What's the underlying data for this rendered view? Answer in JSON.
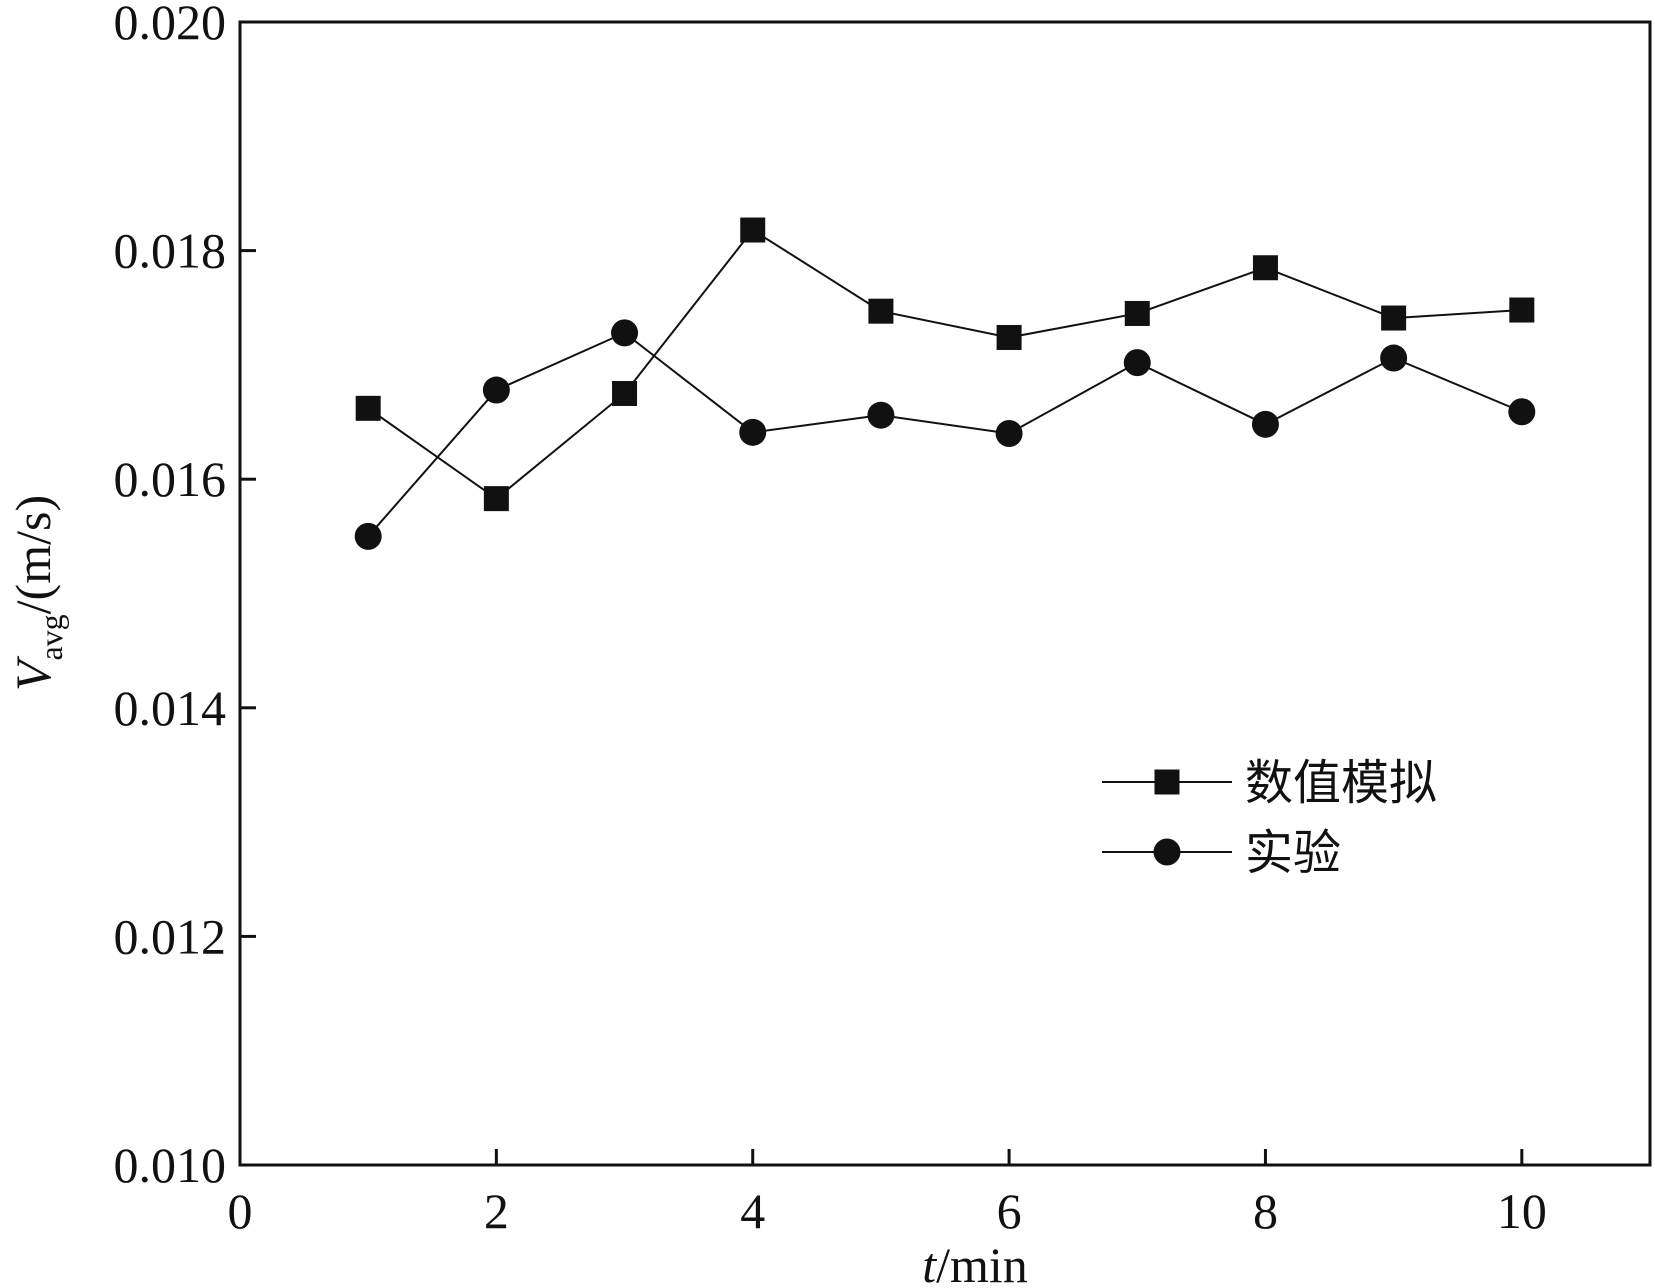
{
  "chart_data": {
    "type": "line",
    "x": [
      1,
      2,
      3,
      4,
      5,
      6,
      7,
      8,
      9,
      10
    ],
    "series": [
      {
        "name": "数值模拟",
        "marker": "square",
        "values": [
          0.01662,
          0.01583,
          0.01675,
          0.01818,
          0.01747,
          0.01724,
          0.01745,
          0.01785,
          0.01741,
          0.01748
        ]
      },
      {
        "name": "实验",
        "marker": "circle",
        "values": [
          0.0155,
          0.01678,
          0.01728,
          0.01641,
          0.01656,
          0.0164,
          0.01702,
          0.01648,
          0.01706,
          0.01659
        ]
      }
    ],
    "xlabel": {
      "italic": "t",
      "rest": "/min"
    },
    "ylabel": {
      "italic": "V",
      "sub": "avg",
      "rest": "/(m/s)"
    },
    "xlim": [
      0,
      11
    ],
    "ylim": [
      0.01,
      0.02
    ],
    "xticks": [
      0,
      2,
      4,
      6,
      8,
      10
    ],
    "xtick_labels": [
      "0",
      "2",
      "4",
      "6",
      "8",
      "10"
    ],
    "yticks": [
      0.01,
      0.012,
      0.014,
      0.016,
      0.018,
      0.02
    ],
    "ytick_labels": [
      "0.010",
      "0.012",
      "0.014",
      "0.016",
      "0.018",
      "0.020"
    ],
    "grid": false,
    "legend_position": "center-right",
    "color": "#111111"
  }
}
